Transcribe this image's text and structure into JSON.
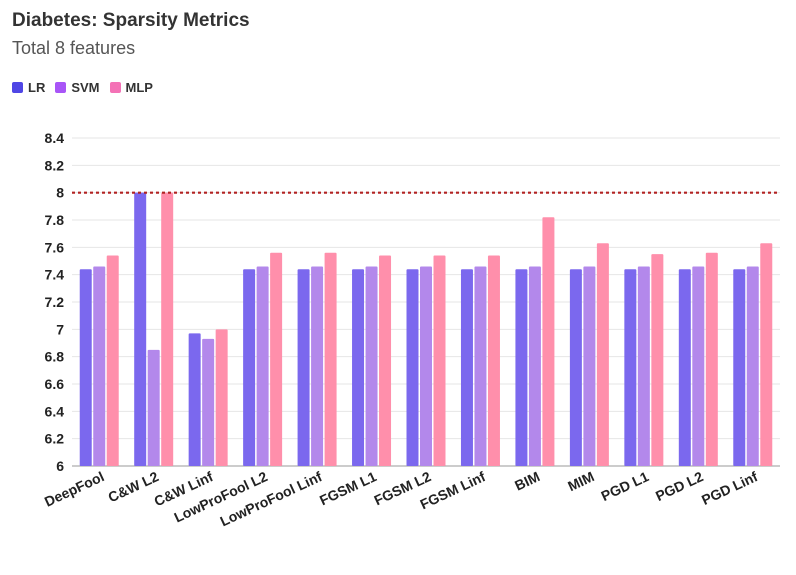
{
  "header": {
    "title": "Diabetes: Sparsity Metrics",
    "subtitle": "Total 8 features"
  },
  "chart_data": {
    "type": "bar",
    "title": "Diabetes: Sparsity Metrics",
    "subtitle": "Total 8 features",
    "categories": [
      "DeepFool",
      "C&W L2",
      "C&W Linf",
      "LowProFool L2",
      "LowProFool Linf",
      "FGSM L1",
      "FGSM L2",
      "FGSM Linf",
      "BIM",
      "MIM",
      "PGD L1",
      "PGD L2",
      "PGD Linf"
    ],
    "series": [
      {
        "name": "LR",
        "color": "#7b68ee",
        "values": [
          7.44,
          8.0,
          6.97,
          7.44,
          7.44,
          7.44,
          7.44,
          7.44,
          7.44,
          7.44,
          7.44,
          7.44,
          7.44
        ]
      },
      {
        "name": "SVM",
        "color": "#b388eb",
        "values": [
          7.46,
          6.85,
          6.93,
          7.46,
          7.46,
          7.46,
          7.46,
          7.46,
          7.46,
          7.46,
          7.46,
          7.46,
          7.46
        ]
      },
      {
        "name": "MLP",
        "color": "#ff8fab",
        "values": [
          7.54,
          8.0,
          7.0,
          7.56,
          7.56,
          7.54,
          7.54,
          7.54,
          7.82,
          7.63,
          7.55,
          7.56,
          7.63
        ]
      }
    ],
    "legend_swatch_colors": [
      "#4f46e5",
      "#a855f7",
      "#f472b6"
    ],
    "ylim": [
      6,
      8.4
    ],
    "yticks": [
      "6",
      "6.2",
      "6.4",
      "6.6",
      "6.8",
      "7",
      "7.2",
      "7.4",
      "7.6",
      "7.8",
      "8",
      "8.2",
      "8.4"
    ],
    "reference_line": {
      "value": 8,
      "color": "#b22222",
      "style": "dotted"
    },
    "grid": true,
    "legend_position": "top-left",
    "xlabel": "",
    "ylabel": ""
  }
}
